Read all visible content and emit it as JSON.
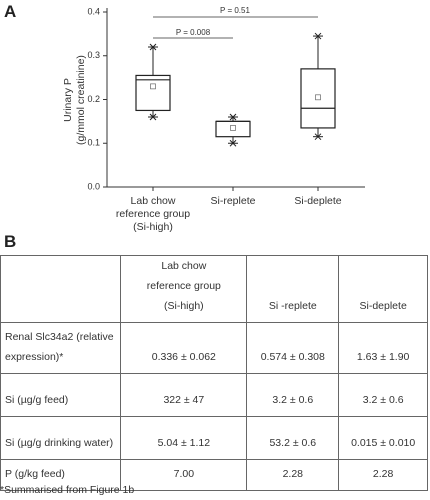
{
  "panel_labels": [
    "A",
    "B"
  ],
  "chart_data": {
    "type": "box",
    "y_label": [
      "Urinary P",
      "(g/mmol creatinine)"
    ],
    "categories": [
      "Lab chow reference group (Si-high)",
      "Si-replete",
      "Si-deplete"
    ],
    "min": [
      0.16,
      0.1,
      0.115
    ],
    "q1": [
      0.175,
      0.115,
      0.135
    ],
    "median": [
      0.245,
      0.15,
      0.18
    ],
    "q3": [
      0.255,
      0.15,
      0.27
    ],
    "max": [
      0.32,
      0.16,
      0.345
    ],
    "mean": [
      0.23,
      0.135,
      0.205
    ],
    "color": "#222222",
    "ylim": [
      0,
      0.4
    ],
    "yticks": [
      {
        "value": 0,
        "label": "0.0"
      },
      0.1,
      0.2,
      0.3,
      0.4
    ],
    "annotations": [
      "P = 0.008",
      "P = 0.51"
    ]
  },
  "table": {
    "columns": [
      "Lab chow reference group (Si-high)",
      "Si -replete",
      "Si-deplete"
    ],
    "rows": [
      {
        "label": "Renal Slc34a2 (relative expression)*",
        "cells": [
          "0.336 ± 0.062",
          "0.574 ± 0.308",
          "1.63 ± 1.90"
        ]
      },
      {
        "label": "Si (µg/g feed)",
        "cells": [
          "322 ± 47",
          "3.2 ± 0.6",
          "3.2 ± 0.6"
        ]
      },
      {
        "label": "Si (µg/g drinking water)",
        "cells": [
          "5.04 ± 1.12",
          "53.2 ± 0.6",
          "0.015 ± 0.010"
        ]
      },
      {
        "label": "P (g/kg feed)",
        "cells": [
          "7.00",
          "2.28",
          "2.28"
        ]
      }
    ],
    "footnote": "*Summarised from Figure 1b"
  }
}
